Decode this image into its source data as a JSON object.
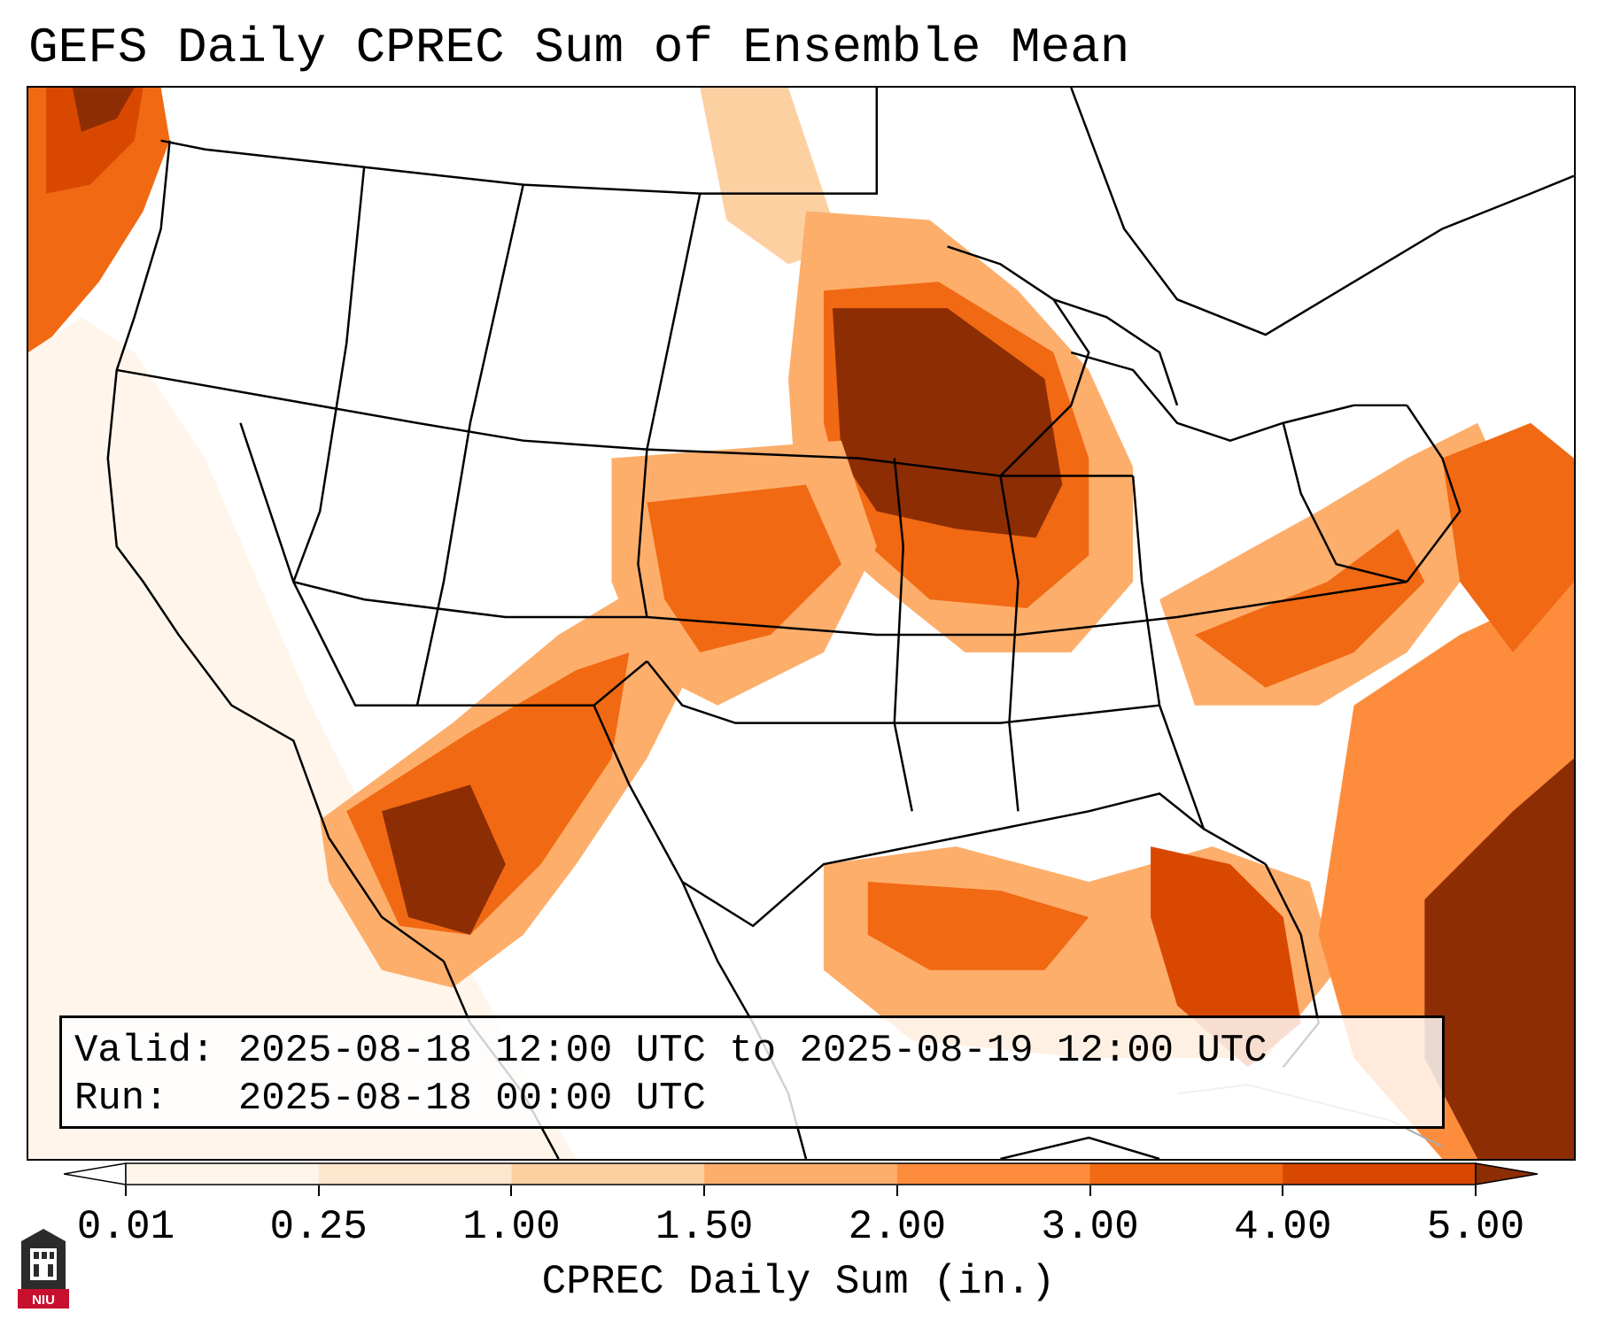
{
  "title": "GEFS Daily CPREC Sum of Ensemble Mean",
  "info": {
    "valid_line": "Valid: 2025-08-18 12:00 UTC to 2025-08-19 12:00 UTC",
    "run_line": "Run:   2025-08-18 00:00 UTC"
  },
  "colorbar": {
    "label": "CPREC Daily Sum (in.)",
    "ticks": [
      "0.01",
      "0.25",
      "1.00",
      "1.50",
      "2.00",
      "3.00",
      "4.00",
      "5.00"
    ],
    "colors": [
      "#fff5eb",
      "#fee6ce",
      "#fdd0a2",
      "#fdae6b",
      "#fd8d3c",
      "#f16913",
      "#d94801",
      "#8c2d04"
    ],
    "extend": "both"
  },
  "logo": {
    "text": "NIU"
  }
}
